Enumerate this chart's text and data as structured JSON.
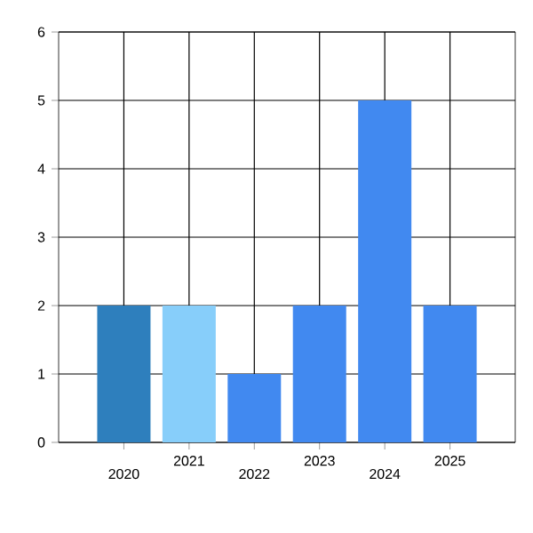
{
  "chart_data": {
    "type": "bar",
    "categories": [
      "2020",
      "2021",
      "2022",
      "2023",
      "2024",
      "2025"
    ],
    "values": [
      2,
      2,
      1,
      2,
      5,
      2
    ],
    "colors": [
      "#2e7fbd",
      "#87cefa",
      "#4189f0",
      "#4189f0",
      "#4189f0",
      "#4189f0"
    ],
    "ylim": [
      0,
      6
    ],
    "yticks": [
      0,
      1,
      2,
      3,
      4,
      5,
      6
    ],
    "grid": true
  }
}
